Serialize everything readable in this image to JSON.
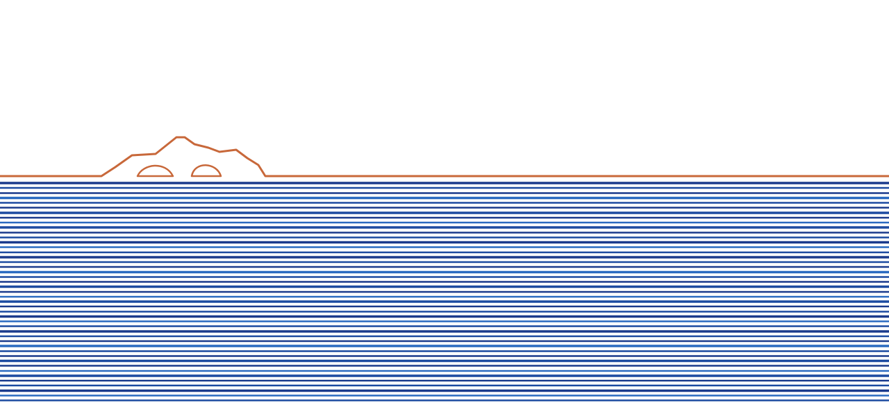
{
  "colors": {
    "background": "#ffffff",
    "landmass": "#c8683a",
    "water_dark": "#1a3a8c",
    "water_mid": "#1c4aa0",
    "water_light": "#2a6ac0"
  },
  "elements": {
    "landmass": "coastline-with-hill",
    "cave_openings": 2,
    "water": "horizontal-striped-sea"
  }
}
